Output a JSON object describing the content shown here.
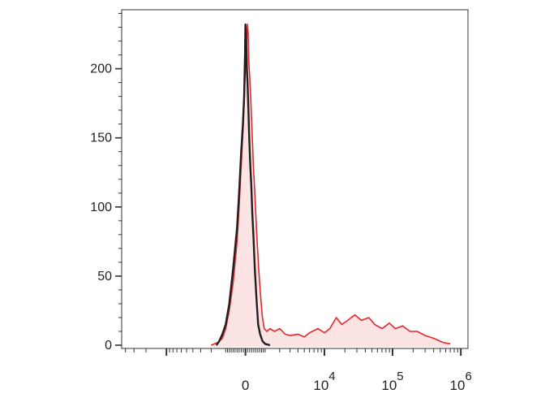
{
  "chart_data": {
    "type": "area",
    "title": "",
    "xlabel": "",
    "ylabel": "",
    "x_scale": "biexponential",
    "ylim": [
      0,
      240
    ],
    "y_ticks": [
      {
        "value": 0,
        "label": "0"
      },
      {
        "value": 50,
        "label": "50"
      },
      {
        "value": 100,
        "label": "100"
      },
      {
        "value": 150,
        "label": "150"
      },
      {
        "value": 200,
        "label": "200"
      }
    ],
    "x_ticks": [
      {
        "value": 0,
        "base": "0",
        "exp": ""
      },
      {
        "value": 10000,
        "base": "10",
        "exp": "4"
      },
      {
        "value": 100000,
        "base": "10",
        "exp": "5"
      },
      {
        "value": 1000000,
        "base": "10",
        "exp": "6"
      }
    ],
    "series": [
      {
        "color": "#e8262a",
        "fill": "#fde4e4",
        "points": [
          [
            -2000,
            0
          ],
          [
            -1500,
            2
          ],
          [
            -1200,
            5
          ],
          [
            -1000,
            12
          ],
          [
            -800,
            25
          ],
          [
            -600,
            45
          ],
          [
            -400,
            75
          ],
          [
            -300,
            100
          ],
          [
            -200,
            130
          ],
          [
            -100,
            160
          ],
          [
            -40,
            185
          ],
          [
            0,
            200
          ],
          [
            30,
            212
          ],
          [
            60,
            222
          ],
          [
            80,
            228
          ],
          [
            100,
            232
          ],
          [
            130,
            225
          ],
          [
            160,
            205
          ],
          [
            200,
            195
          ],
          [
            250,
            180
          ],
          [
            300,
            160
          ],
          [
            380,
            130
          ],
          [
            450,
            110
          ],
          [
            550,
            80
          ],
          [
            650,
            55
          ],
          [
            750,
            35
          ],
          [
            850,
            20
          ],
          [
            950,
            12
          ],
          [
            1100,
            10
          ],
          [
            1300,
            12
          ],
          [
            1600,
            10
          ],
          [
            2000,
            12
          ],
          [
            2500,
            8
          ],
          [
            3000,
            7
          ],
          [
            4000,
            8
          ],
          [
            5000,
            6
          ],
          [
            6000,
            9
          ],
          [
            8000,
            12
          ],
          [
            10000,
            9
          ],
          [
            12000,
            12
          ],
          [
            15000,
            20
          ],
          [
            18000,
            15
          ],
          [
            22000,
            18
          ],
          [
            28000,
            22
          ],
          [
            35000,
            18
          ],
          [
            45000,
            20
          ],
          [
            55000,
            15
          ],
          [
            70000,
            12
          ],
          [
            90000,
            16
          ],
          [
            110000,
            12
          ],
          [
            140000,
            14
          ],
          [
            180000,
            10
          ],
          [
            230000,
            10
          ],
          [
            300000,
            7
          ],
          [
            400000,
            5
          ],
          [
            550000,
            2
          ],
          [
            700000,
            1
          ]
        ]
      },
      {
        "color": "#1f1f1f",
        "fill": "none",
        "points": [
          [
            -1600,
            0
          ],
          [
            -1400,
            3
          ],
          [
            -1200,
            8
          ],
          [
            -1000,
            15
          ],
          [
            -800,
            30
          ],
          [
            -600,
            55
          ],
          [
            -400,
            85
          ],
          [
            -300,
            110
          ],
          [
            -200,
            140
          ],
          [
            -120,
            160
          ],
          [
            -60,
            180
          ],
          [
            -20,
            210
          ],
          [
            0,
            232
          ],
          [
            20,
            225
          ],
          [
            40,
            218
          ],
          [
            70,
            200
          ],
          [
            100,
            190
          ],
          [
            140,
            170
          ],
          [
            180,
            150
          ],
          [
            230,
            130
          ],
          [
            280,
            115
          ],
          [
            330,
            95
          ],
          [
            380,
            80
          ],
          [
            450,
            55
          ],
          [
            530,
            35
          ],
          [
            620,
            15
          ],
          [
            720,
            8
          ],
          [
            850,
            3
          ],
          [
            1000,
            1
          ],
          [
            1300,
            0
          ]
        ]
      }
    ]
  }
}
